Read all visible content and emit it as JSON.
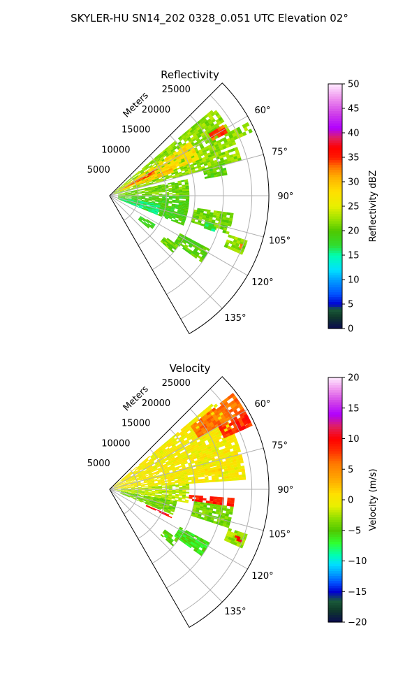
{
  "figure": {
    "suptitle": "SKYLER-HU  SN14_202  0328_0.051 UTC Elevation 02°"
  },
  "chart_data": [
    {
      "type": "heatmap",
      "subtype": "polar-sector (PPI radar scan)",
      "title": "Reflectivity",
      "radial_label": "Meters",
      "range_ticks": [
        5000,
        10000,
        15000,
        20000,
        25000
      ],
      "range_tick_labels": [
        "5000",
        "10000",
        "15000",
        "20000",
        "25000"
      ],
      "range_max_m": 28000,
      "azimuth_range_deg": [
        45,
        150
      ],
      "azimuth_ticks": [
        60,
        75,
        90,
        105,
        120,
        135
      ],
      "azimuth_tick_labels": [
        "60°",
        "75°",
        "90°",
        "105°",
        "120°",
        "135°"
      ],
      "grid": true,
      "colorbar": {
        "label": "Reflectivity dBZ",
        "min": 0,
        "max": 50,
        "ticks": [
          0,
          5,
          10,
          15,
          20,
          25,
          30,
          35,
          40,
          45,
          50
        ],
        "tick_labels": [
          "0",
          "5",
          "10",
          "15",
          "20",
          "25",
          "30",
          "35",
          "40",
          "45",
          "50"
        ],
        "stops": [
          {
            "v": 0,
            "c": "#0a0a50"
          },
          {
            "v": 2.5,
            "c": "#0f3a2a"
          },
          {
            "v": 4,
            "c": "#1a5a3a"
          },
          {
            "v": 5,
            "c": "#0000d0"
          },
          {
            "v": 7,
            "c": "#0050ff"
          },
          {
            "v": 10,
            "c": "#00a0ff"
          },
          {
            "v": 12,
            "c": "#00e0ff"
          },
          {
            "v": 15,
            "c": "#00ffb0"
          },
          {
            "v": 17,
            "c": "#30dd30"
          },
          {
            "v": 20,
            "c": "#50c800"
          },
          {
            "v": 22,
            "c": "#90e000"
          },
          {
            "v": 25,
            "c": "#e8f000"
          },
          {
            "v": 28,
            "c": "#ffe000"
          },
          {
            "v": 31,
            "c": "#ffb000"
          },
          {
            "v": 33,
            "c": "#ff7800"
          },
          {
            "v": 35,
            "c": "#ff1a00"
          },
          {
            "v": 37,
            "c": "#ff0000"
          },
          {
            "v": 39,
            "c": "#e02060"
          },
          {
            "v": 41,
            "c": "#b000ff"
          },
          {
            "v": 44,
            "c": "#d040e8"
          },
          {
            "v": 47,
            "c": "#ee90ee"
          },
          {
            "v": 50,
            "c": "#ffeaff"
          }
        ]
      },
      "regions": [
        {
          "az": [
            50,
            75
          ],
          "r": [
            800,
            24000
          ],
          "value": 22
        },
        {
          "az": [
            56,
            68
          ],
          "r": [
            2000,
            17000
          ],
          "value": 28
        },
        {
          "az": [
            60,
            64
          ],
          "r": [
            3000,
            9500
          ],
          "value": 34
        },
        {
          "az": [
            66,
            70
          ],
          "r": [
            5000,
            12000
          ],
          "value": 30
        },
        {
          "az": [
            58,
            62
          ],
          "r": [
            20500,
            23500
          ],
          "value": 34
        },
        {
          "az": [
            62,
            66
          ],
          "r": [
            23500,
            27500
          ],
          "value": 22
        },
        {
          "az": [
            78,
            90
          ],
          "r": [
            1500,
            14000
          ],
          "value": 21
        },
        {
          "az": [
            74,
            80
          ],
          "r": [
            17000,
            21000
          ],
          "value": 20
        },
        {
          "az": [
            90,
            112
          ],
          "r": [
            1500,
            14000
          ],
          "value": 19
        },
        {
          "az": [
            100,
            112
          ],
          "r": [
            2000,
            9000
          ],
          "value": 16
        },
        {
          "az": [
            98,
            108
          ],
          "r": [
            15000,
            22000
          ],
          "value": 21
        },
        {
          "az": [
            108,
            114
          ],
          "r": [
            22000,
            25500
          ],
          "value": 22
        },
        {
          "az": [
            110,
            112
          ],
          "r": [
            24000,
            25000
          ],
          "value": 33
        },
        {
          "az": [
            118,
            126
          ],
          "r": [
            14000,
            20000
          ],
          "value": 20
        },
        {
          "az": [
            122,
            130
          ],
          "r": [
            6500,
            9500
          ],
          "value": 18
        },
        {
          "az": [
            126,
            132
          ],
          "r": [
            12000,
            15000
          ],
          "value": 21
        },
        {
          "az": [
            105,
            109
          ],
          "r": [
            17500,
            19500
          ],
          "value": 17
        }
      ]
    },
    {
      "type": "heatmap",
      "subtype": "polar-sector (PPI radar scan)",
      "title": "Velocity",
      "radial_label": "Meters",
      "range_ticks": [
        5000,
        10000,
        15000,
        20000,
        25000
      ],
      "range_tick_labels": [
        "5000",
        "10000",
        "15000",
        "20000",
        "25000"
      ],
      "range_max_m": 28000,
      "azimuth_range_deg": [
        45,
        150
      ],
      "azimuth_ticks": [
        60,
        75,
        90,
        105,
        120,
        135
      ],
      "azimuth_tick_labels": [
        "60°",
        "75°",
        "90°",
        "105°",
        "120°",
        "135°"
      ],
      "grid": true,
      "colorbar": {
        "label": "Velocity (m/s)",
        "min": -20,
        "max": 20,
        "ticks": [
          -20,
          -15,
          -10,
          -5,
          0,
          5,
          10,
          15,
          20
        ],
        "tick_labels": [
          "−20",
          "−15",
          "−10",
          "−5",
          "0",
          "5",
          "10",
          "15",
          "20"
        ],
        "stops": [
          {
            "v": -20,
            "c": "#0a0a50"
          },
          {
            "v": -18,
            "c": "#0f3a2a"
          },
          {
            "v": -16.5,
            "c": "#1a5a3a"
          },
          {
            "v": -15,
            "c": "#0000d0"
          },
          {
            "v": -13.5,
            "c": "#0050ff"
          },
          {
            "v": -12,
            "c": "#00a0ff"
          },
          {
            "v": -10.5,
            "c": "#00e0ff"
          },
          {
            "v": -9,
            "c": "#00ffb0"
          },
          {
            "v": -7,
            "c": "#30ff30"
          },
          {
            "v": -5,
            "c": "#50c800"
          },
          {
            "v": -3,
            "c": "#90e000"
          },
          {
            "v": -1,
            "c": "#e8f000"
          },
          {
            "v": 1,
            "c": "#ffe000"
          },
          {
            "v": 3,
            "c": "#ffb000"
          },
          {
            "v": 6,
            "c": "#ff7800"
          },
          {
            "v": 8,
            "c": "#ff3000"
          },
          {
            "v": 10,
            "c": "#ff0000"
          },
          {
            "v": 12,
            "c": "#e02060"
          },
          {
            "v": 14,
            "c": "#b000ff"
          },
          {
            "v": 16,
            "c": "#d040e8"
          },
          {
            "v": 18,
            "c": "#ee90ee"
          },
          {
            "v": 20,
            "c": "#ffeaff"
          }
        ]
      },
      "regions": [
        {
          "az": [
            50,
            86
          ],
          "r": [
            800,
            24000
          ],
          "value": 0
        },
        {
          "az": [
            52,
            60
          ],
          "r": [
            18000,
            27500
          ],
          "value": 6
        },
        {
          "az": [
            60,
            66
          ],
          "r": [
            22000,
            27500
          ],
          "value": 8
        },
        {
          "az": [
            62,
            66
          ],
          "r": [
            25000,
            27500
          ],
          "value": 10
        },
        {
          "az": [
            86,
            100
          ],
          "r": [
            800,
            14000
          ],
          "value": -2
        },
        {
          "az": [
            100,
            112
          ],
          "r": [
            2000,
            12000
          ],
          "value": -4
        },
        {
          "az": [
            78,
            82
          ],
          "r": [
            17000,
            20000
          ],
          "value": 1
        },
        {
          "az": [
            98,
            108
          ],
          "r": [
            15000,
            22000
          ],
          "value": -4
        },
        {
          "az": [
            108,
            114
          ],
          "r": [
            22000,
            25500
          ],
          "value": -3
        },
        {
          "az": [
            110,
            112
          ],
          "r": [
            23500,
            25000
          ],
          "value": 10
        },
        {
          "az": [
            118,
            126
          ],
          "r": [
            14000,
            20000
          ],
          "value": -6
        },
        {
          "az": [
            126,
            132
          ],
          "r": [
            12000,
            15000
          ],
          "value": -5
        },
        {
          "az": [
            94,
            98
          ],
          "r": [
            14000,
            22000
          ],
          "value": 9
        },
        {
          "az": [
            113,
            115
          ],
          "r": [
            7000,
            12000
          ],
          "value": 10
        }
      ]
    }
  ]
}
